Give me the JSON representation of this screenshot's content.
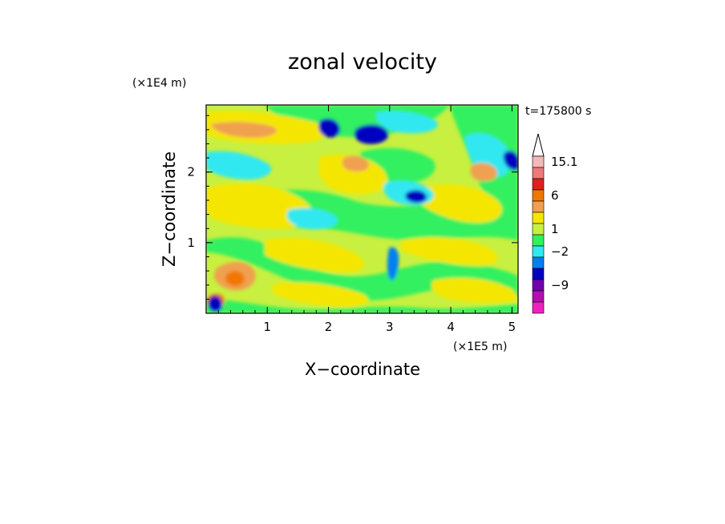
{
  "chart_data": {
    "type": "heatmap",
    "title": "zonal velocity",
    "time_label": "t=175800 s",
    "x_axis": {
      "label": "X−coordinate",
      "unit": "(×1E5 m)",
      "ticks": [
        "1",
        "2",
        "3",
        "4",
        "5"
      ],
      "tick_values": [
        1,
        2,
        3,
        4,
        5
      ],
      "range": [
        0,
        5.1
      ]
    },
    "y_axis": {
      "label": "Z−coordinate",
      "unit": "(×1E4 m)",
      "ticks": [
        "1",
        "2"
      ],
      "tick_values": [
        1,
        2
      ],
      "range": [
        0,
        2.95
      ]
    },
    "colorbar": {
      "labels": [
        "15.1",
        "6",
        "1",
        "−2",
        "−9"
      ],
      "colors_top_to_bottom": [
        "#f5b8b8",
        "#f07878",
        "#e02020",
        "#f07800",
        "#f0a050",
        "#f5e600",
        "#c8f040",
        "#30f060",
        "#30e8f0",
        "#0080f0",
        "#0000c0",
        "#7000b0",
        "#b010b0",
        "#f020c0"
      ]
    }
  }
}
